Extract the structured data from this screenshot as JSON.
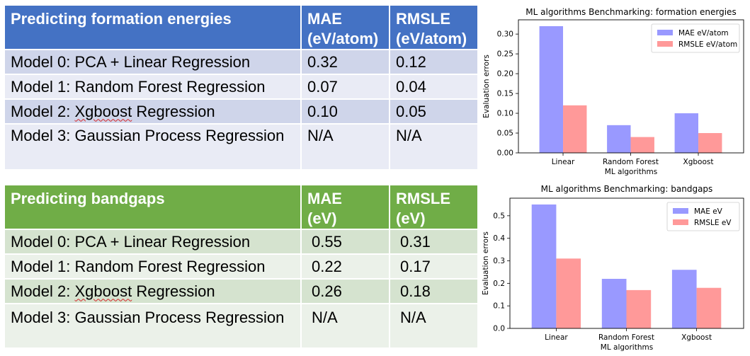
{
  "tables": [
    {
      "header": {
        "title": "Predicting formation energies",
        "mae": "MAE\n(eV/atom)",
        "rmsle": "RMSLE\n(eV/atom)"
      },
      "rows": [
        {
          "model": "Model 0: PCA + Linear Regression",
          "mae": "0.32",
          "rmsle": "0.12"
        },
        {
          "model": "Model 1: Random Forest Regression",
          "mae": "0.07",
          "rmsle": "0.04"
        },
        {
          "model_prefix": "Model 2: ",
          "model_word": "Xgboost",
          "model_suffix": " Regression",
          "mae": "0.10",
          "rmsle": "0.05"
        },
        {
          "model": "Model 3: Gaussian Process Regression",
          "mae": "N/A",
          "rmsle": "N/A"
        }
      ]
    },
    {
      "header": {
        "title": "Predicting bandgaps",
        "mae": "MAE\n(eV)",
        "rmsle": "RMSLE\n(eV)"
      },
      "rows": [
        {
          "model": "Model 0: PCA + Linear Regression",
          "mae": "0.55",
          "rmsle": "0.31"
        },
        {
          "model": "Model 1: Random Forest Regression",
          "mae": "0.22",
          "rmsle": "0.17"
        },
        {
          "model_prefix": "Model 2: ",
          "model_word": "Xgboost",
          "model_suffix": " Regression",
          "mae": "0.26",
          "rmsle": "0.18"
        },
        {
          "model": "Model 3: Gaussian Process Regression",
          "mae": "N/A",
          "rmsle": "N/A"
        }
      ]
    }
  ],
  "chart_data": [
    {
      "type": "bar",
      "title": "ML algorithms Benchmarking: formation energies",
      "xlabel": "ML algorithms",
      "ylabel": "Evaluation errors",
      "categories": [
        "Linear",
        "Random Forest",
        "Xgboost"
      ],
      "series": [
        {
          "name": "MAE eV/atom",
          "values": [
            0.32,
            0.07,
            0.1
          ],
          "color": "#9999ff"
        },
        {
          "name": "RMSLE eV/atom",
          "values": [
            0.12,
            0.04,
            0.05
          ],
          "color": "#ff9999"
        }
      ],
      "ylim": [
        0,
        0.336
      ],
      "yticks": [
        0.0,
        0.05,
        0.1,
        0.15,
        0.2,
        0.25,
        0.3
      ],
      "ytick_labels": [
        "0.00",
        "0.05",
        "0.10",
        "0.15",
        "0.20",
        "0.25",
        "0.30"
      ],
      "grid": false,
      "legend": "top-right"
    },
    {
      "type": "bar",
      "title": "ML algorithms Benchmarking: bandgaps",
      "xlabel": "ML algorithms",
      "ylabel": "Evaluation errors",
      "categories": [
        "Linear",
        "Random Forest",
        "Xgboost"
      ],
      "series": [
        {
          "name": "MAE eV",
          "values": [
            0.55,
            0.22,
            0.26
          ],
          "color": "#9999ff"
        },
        {
          "name": "RMSLE eV",
          "values": [
            0.31,
            0.17,
            0.18
          ],
          "color": "#ff9999"
        }
      ],
      "ylim": [
        0,
        0.578
      ],
      "yticks": [
        0.0,
        0.1,
        0.2,
        0.3,
        0.4,
        0.5
      ],
      "ytick_labels": [
        "0.0",
        "0.1",
        "0.2",
        "0.3",
        "0.4",
        "0.5"
      ],
      "grid": false,
      "legend": "top-right"
    }
  ]
}
